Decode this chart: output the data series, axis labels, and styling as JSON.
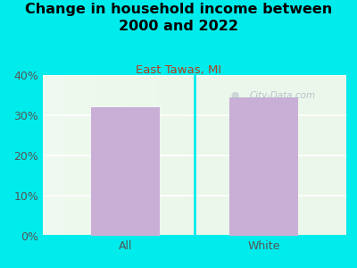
{
  "title": "Change in household income between\n2000 and 2022",
  "subtitle": "East Tawas, MI",
  "categories": [
    "All",
    "White"
  ],
  "values": [
    32.0,
    34.5
  ],
  "bar_color": "#c9aed6",
  "title_fontsize": 11.5,
  "subtitle_fontsize": 9.5,
  "subtitle_color": "#b04020",
  "tick_label_fontsize": 9,
  "ylim": [
    0,
    40
  ],
  "yticks": [
    0,
    10,
    20,
    30,
    40
  ],
  "ytick_labels": [
    "0%",
    "10%",
    "20%",
    "30%",
    "40%"
  ],
  "background_color": "#00ecec",
  "watermark": "City-Data.com",
  "watermark_color": "#b0b8c8"
}
